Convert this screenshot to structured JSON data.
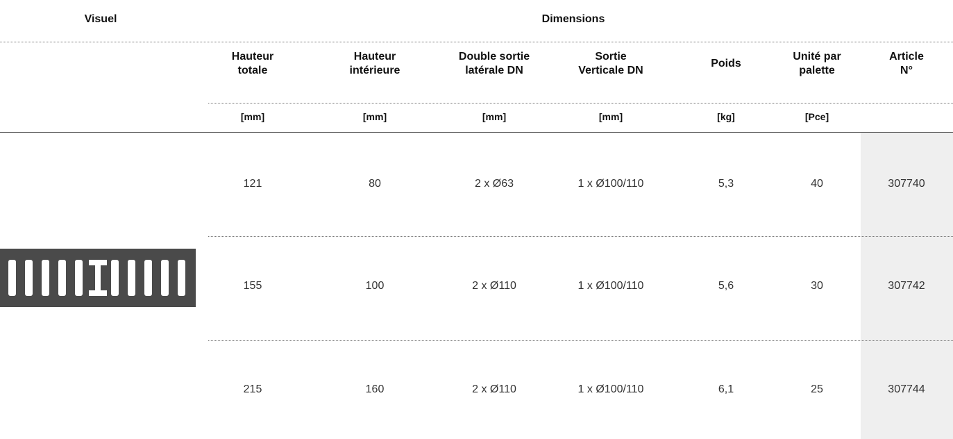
{
  "header": {
    "visual": "Visuel",
    "dimensions": "Dimensions"
  },
  "columns": [
    {
      "label": [
        "Hauteur",
        "totale"
      ],
      "unit": "[mm]"
    },
    {
      "label": [
        "Hauteur",
        "intérieure"
      ],
      "unit": "[mm]"
    },
    {
      "label": [
        "Double sortie",
        "latérale DN"
      ],
      "unit": "[mm]"
    },
    {
      "label": [
        "Sortie",
        "Verticale DN"
      ],
      "unit": "[mm]"
    },
    {
      "label": [
        "Poids"
      ],
      "unit": "[kg]"
    },
    {
      "label": [
        "Unité par",
        "palette"
      ],
      "unit": "[Pce]"
    },
    {
      "label": [
        "Article",
        "N°"
      ],
      "unit": null
    }
  ],
  "rows": [
    [
      "121",
      "80",
      "2 x Ø63",
      "1 x Ø100/110",
      "5,3",
      "40",
      "307740"
    ],
    [
      "155",
      "100",
      "2 x Ø110",
      "1 x Ø100/110",
      "5,6",
      "30",
      "307742"
    ],
    [
      "215",
      "160",
      "2 x Ø110",
      "1 x Ø100/110",
      "6,1",
      "25",
      "307744"
    ]
  ]
}
